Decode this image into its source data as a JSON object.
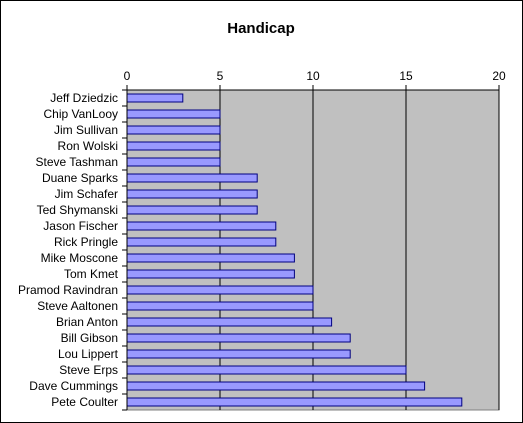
{
  "chart_data": {
    "type": "bar",
    "orientation": "horizontal",
    "title": "Handicap",
    "xlabel": "",
    "ylabel": "",
    "xlim": [
      0,
      20
    ],
    "xticks": [
      0,
      5,
      10,
      15,
      20
    ],
    "xaxis_position": "top",
    "grid": "vertical major gridlines",
    "legend": "none",
    "categories": [
      "Jeff Dziedzic",
      "Chip VanLooy",
      "Jim Sullivan",
      "Ron Wolski",
      "Steve Tashman",
      "Duane Sparks",
      "Jim Schafer",
      "Ted Shymanski",
      "Jason Fischer",
      "Rick Pringle",
      "Mike Moscone",
      "Tom Kmet",
      "Pramod Ravindran",
      "Steve Aaltonen",
      "Brian Anton",
      "Bill Gibson",
      "Lou Lippert",
      "Steve Erps",
      "Dave Cummings",
      "Pete Coulter"
    ],
    "values": [
      3,
      5,
      5,
      5,
      5,
      7,
      7,
      7,
      8,
      8,
      9,
      9,
      10,
      10,
      11,
      12,
      12,
      15,
      16,
      18
    ],
    "colors": {
      "bar_fill": "#9999ff",
      "bar_stroke": "#000080",
      "plot_background": "#c0c0c0",
      "gridline": "#000000"
    }
  }
}
